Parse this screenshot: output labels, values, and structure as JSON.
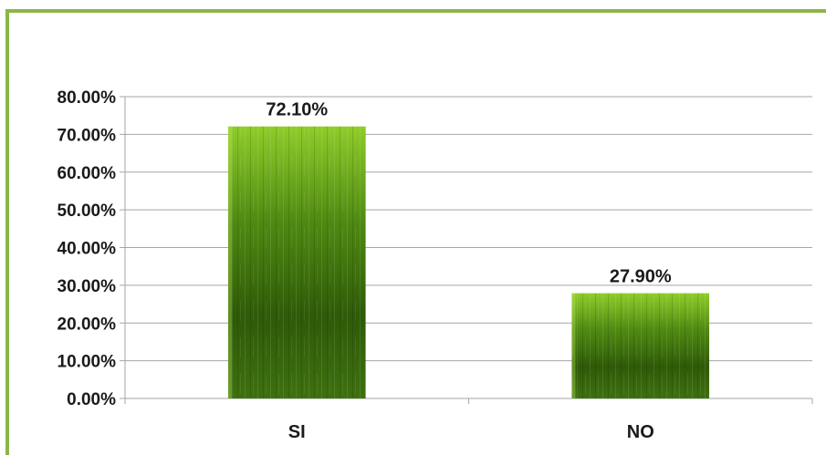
{
  "colors": {
    "border": "#8bb54a",
    "bar_dark": "#2f5a08",
    "bar_mid": "#4f8a12",
    "bar_light": "#8fcc2a",
    "grid": "#a6a6a6",
    "text": "#1a1a1a"
  },
  "chart_data": {
    "type": "bar",
    "title": "",
    "xlabel": "",
    "ylabel": "",
    "categories": [
      "SI",
      "NO"
    ],
    "values": [
      72.1,
      27.9
    ],
    "data_labels": [
      "72.10%",
      "27.90%"
    ],
    "ylim": [
      0,
      80
    ],
    "yticks": [
      0,
      10,
      20,
      30,
      40,
      50,
      60,
      70,
      80
    ],
    "ytick_labels": [
      "0.00%",
      "10.00%",
      "20.00%",
      "30.00%",
      "40.00%",
      "50.00%",
      "60.00%",
      "70.00%",
      "80.00%"
    ],
    "grid": true,
    "legend": "none"
  }
}
